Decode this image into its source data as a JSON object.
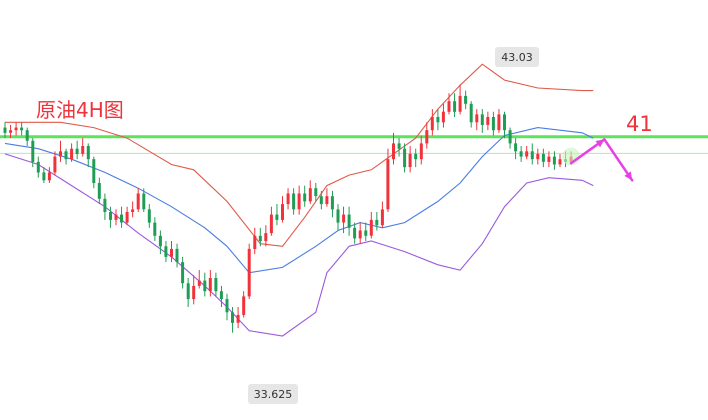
{
  "chart_data": {
    "type": "candlestick",
    "title": "原油4H图",
    "ylim": [
      31.0,
      45.4
    ],
    "grid": false,
    "legend": "none",
    "colors": {
      "up": "#f0323a",
      "down": "#1f9d55",
      "bb_upper": "#e05a4a",
      "bb_middle": "#4a7de0",
      "bb_lower": "#9b59e0",
      "resistance": "#5fe35a",
      "support": "#a9efa6",
      "arrow": "#e640e6"
    },
    "annotations": {
      "high_label": "43.03",
      "low_label": "33.625",
      "target_label": "41"
    },
    "levels": {
      "resistance": 41.05,
      "support": 40.42
    },
    "projection": {
      "points": [
        [
          102,
          40.05
        ],
        [
          108,
          40.95
        ],
        [
          113,
          39.4
        ]
      ]
    },
    "candles": [
      [
        41.4,
        41.2,
        41.6,
        41.0
      ],
      [
        41.2,
        41.3,
        41.5,
        41.0
      ],
      [
        41.3,
        41.4,
        41.6,
        41.1
      ],
      [
        41.4,
        41.3,
        41.6,
        41.1
      ],
      [
        41.3,
        40.9,
        41.4,
        40.7
      ],
      [
        40.9,
        40.1,
        41.0,
        39.9
      ],
      [
        40.1,
        39.7,
        40.3,
        39.5
      ],
      [
        39.7,
        39.4,
        39.9,
        39.3
      ],
      [
        39.4,
        39.7,
        39.9,
        39.3
      ],
      [
        39.7,
        40.3,
        40.5,
        39.6
      ],
      [
        40.3,
        40.5,
        40.9,
        40.1
      ],
      [
        40.5,
        40.2,
        40.6,
        40.0
      ],
      [
        40.2,
        40.6,
        40.8,
        40.1
      ],
      [
        40.6,
        40.4,
        40.9,
        40.2
      ],
      [
        40.4,
        40.7,
        41.0,
        40.3
      ],
      [
        40.7,
        40.2,
        40.8,
        39.9
      ],
      [
        40.2,
        39.3,
        40.3,
        39.1
      ],
      [
        39.3,
        38.7,
        39.5,
        38.5
      ],
      [
        38.7,
        38.2,
        38.9,
        37.9
      ],
      [
        38.2,
        37.9,
        38.4,
        37.6
      ],
      [
        37.9,
        38.1,
        38.3,
        37.7
      ],
      [
        38.1,
        37.8,
        38.4,
        37.6
      ],
      [
        37.8,
        38.2,
        38.4,
        37.7
      ],
      [
        38.2,
        38.3,
        38.6,
        38.0
      ],
      [
        38.3,
        38.9,
        39.1,
        38.2
      ],
      [
        38.9,
        38.3,
        39.1,
        38.2
      ],
      [
        38.3,
        37.8,
        38.5,
        37.6
      ],
      [
        37.8,
        37.3,
        38.0,
        37.1
      ],
      [
        37.3,
        36.9,
        37.5,
        36.6
      ],
      [
        36.9,
        36.5,
        37.1,
        36.3
      ],
      [
        36.5,
        36.8,
        37.1,
        36.3
      ],
      [
        36.8,
        36.3,
        37.0,
        36.1
      ],
      [
        36.3,
        35.5,
        36.5,
        35.3
      ],
      [
        35.5,
        34.9,
        35.7,
        34.6
      ],
      [
        34.9,
        35.4,
        35.8,
        34.7
      ],
      [
        35.4,
        35.6,
        36.0,
        35.3
      ],
      [
        35.6,
        35.2,
        35.9,
        35.0
      ],
      [
        35.2,
        35.7,
        36.0,
        35.0
      ],
      [
        35.7,
        35.2,
        35.9,
        35.0
      ],
      [
        35.2,
        34.9,
        35.4,
        34.6
      ],
      [
        34.9,
        34.4,
        35.1,
        34.1
      ],
      [
        34.4,
        34.0,
        34.6,
        33.625
      ],
      [
        34.0,
        34.3,
        34.6,
        33.8
      ],
      [
        34.3,
        35.0,
        35.2,
        34.2
      ],
      [
        35.0,
        36.8,
        37.0,
        34.9
      ],
      [
        36.8,
        37.3,
        37.6,
        36.6
      ],
      [
        37.3,
        37.1,
        37.6,
        36.9
      ],
      [
        37.1,
        37.4,
        37.7,
        36.9
      ],
      [
        37.4,
        38.1,
        38.4,
        37.3
      ],
      [
        38.1,
        37.9,
        38.5,
        37.7
      ],
      [
        37.9,
        38.5,
        38.8,
        37.8
      ],
      [
        38.5,
        38.9,
        39.1,
        38.3
      ],
      [
        38.9,
        38.3,
        39.1,
        38.1
      ],
      [
        38.3,
        38.9,
        39.2,
        38.1
      ],
      [
        38.9,
        38.6,
        39.2,
        38.4
      ],
      [
        38.6,
        39.1,
        39.4,
        38.5
      ],
      [
        39.1,
        38.8,
        39.3,
        38.6
      ],
      [
        38.8,
        38.5,
        39.0,
        38.3
      ],
      [
        38.5,
        38.8,
        39.1,
        38.4
      ],
      [
        38.8,
        38.3,
        39.0,
        38.0
      ],
      [
        38.3,
        37.8,
        38.5,
        37.5
      ],
      [
        37.8,
        38.1,
        38.4,
        37.4
      ],
      [
        38.1,
        37.6,
        38.4,
        37.3
      ],
      [
        37.6,
        37.2,
        37.8,
        37.0
      ],
      [
        37.2,
        37.5,
        37.8,
        37.0
      ],
      [
        37.5,
        37.3,
        37.8,
        37.1
      ],
      [
        37.3,
        37.9,
        38.2,
        37.2
      ],
      [
        37.9,
        37.7,
        38.2,
        37.5
      ],
      [
        37.7,
        38.3,
        38.6,
        37.6
      ],
      [
        38.3,
        40.2,
        40.6,
        38.2
      ],
      [
        40.2,
        40.8,
        41.2,
        40.0
      ],
      [
        40.8,
        40.6,
        41.0,
        40.3
      ],
      [
        40.6,
        39.9,
        40.8,
        39.7
      ],
      [
        39.9,
        40.4,
        40.7,
        39.7
      ],
      [
        40.4,
        40.2,
        40.6,
        39.9
      ],
      [
        40.2,
        40.8,
        41.1,
        40.0
      ],
      [
        40.8,
        41.3,
        41.6,
        40.6
      ],
      [
        41.3,
        41.8,
        42.1,
        41.1
      ],
      [
        41.8,
        41.6,
        42.1,
        41.3
      ],
      [
        41.6,
        42.0,
        42.3,
        41.4
      ],
      [
        42.0,
        42.4,
        42.7,
        41.9
      ],
      [
        42.4,
        42.0,
        42.7,
        41.8
      ],
      [
        42.0,
        42.6,
        43.03,
        41.9
      ],
      [
        42.6,
        42.3,
        42.8,
        42.1
      ],
      [
        42.3,
        41.6,
        42.4,
        41.4
      ],
      [
        41.6,
        41.9,
        42.1,
        41.3
      ],
      [
        41.9,
        41.5,
        42.1,
        41.2
      ],
      [
        41.5,
        41.8,
        42.0,
        41.3
      ],
      [
        41.8,
        41.3,
        42.0,
        41.1
      ],
      [
        41.3,
        41.9,
        42.1,
        41.2
      ],
      [
        41.9,
        41.3,
        42.0,
        41.0
      ],
      [
        41.3,
        40.8,
        41.4,
        40.6
      ],
      [
        40.8,
        40.5,
        41.0,
        40.2
      ],
      [
        40.5,
        40.3,
        40.7,
        40.1
      ],
      [
        40.3,
        40.5,
        40.7,
        40.2
      ],
      [
        40.5,
        40.2,
        40.8,
        40.0
      ],
      [
        40.2,
        40.4,
        40.6,
        40.0
      ],
      [
        40.4,
        40.1,
        40.6,
        39.9
      ],
      [
        40.1,
        40.3,
        40.5,
        39.9
      ],
      [
        40.3,
        40.0,
        40.5,
        39.8
      ],
      [
        40.0,
        40.2,
        40.4,
        39.9
      ],
      [
        40.2,
        40.1,
        40.5,
        39.9
      ],
      [
        40.1,
        40.3,
        40.5,
        40.0
      ]
    ],
    "bollinger": {
      "upper": [
        [
          0,
          41.6
        ],
        [
          10,
          41.6
        ],
        [
          16,
          41.4
        ],
        [
          22,
          41.0
        ],
        [
          26,
          40.5
        ],
        [
          30,
          40.0
        ],
        [
          34,
          39.8
        ],
        [
          40,
          38.6
        ],
        [
          46,
          37.0
        ],
        [
          50,
          36.9
        ],
        [
          54,
          38.0
        ],
        [
          58,
          39.2
        ],
        [
          62,
          39.6
        ],
        [
          66,
          39.8
        ],
        [
          70,
          40.4
        ],
        [
          74,
          41.0
        ],
        [
          78,
          42.1
        ],
        [
          82,
          43.0
        ],
        [
          86,
          43.8
        ],
        [
          90,
          43.2
        ],
        [
          96,
          42.9
        ],
        [
          104,
          42.8
        ],
        [
          106,
          42.8
        ]
      ],
      "middle": [
        [
          0,
          40.8
        ],
        [
          6,
          40.6
        ],
        [
          12,
          40.2
        ],
        [
          18,
          39.7
        ],
        [
          24,
          39.1
        ],
        [
          30,
          38.4
        ],
        [
          36,
          37.6
        ],
        [
          40,
          36.9
        ],
        [
          44,
          35.9
        ],
        [
          50,
          36.1
        ],
        [
          56,
          36.9
        ],
        [
          60,
          37.5
        ],
        [
          64,
          37.8
        ],
        [
          68,
          37.6
        ],
        [
          72,
          37.8
        ],
        [
          78,
          38.6
        ],
        [
          82,
          39.3
        ],
        [
          86,
          40.3
        ],
        [
          90,
          41.1
        ],
        [
          96,
          41.4
        ],
        [
          104,
          41.2
        ],
        [
          106,
          41.0
        ]
      ],
      "lower": [
        [
          0,
          40.4
        ],
        [
          6,
          40.0
        ],
        [
          12,
          39.2
        ],
        [
          18,
          38.4
        ],
        [
          24,
          37.4
        ],
        [
          30,
          36.5
        ],
        [
          36,
          35.4
        ],
        [
          40,
          34.6
        ],
        [
          44,
          33.7
        ],
        [
          50,
          33.5
        ],
        [
          56,
          34.4
        ],
        [
          58,
          35.9
        ],
        [
          62,
          36.9
        ],
        [
          66,
          37.1
        ],
        [
          72,
          36.7
        ],
        [
          78,
          36.2
        ],
        [
          82,
          36.0
        ],
        [
          86,
          37.0
        ],
        [
          90,
          38.4
        ],
        [
          94,
          39.3
        ],
        [
          98,
          39.5
        ],
        [
          104,
          39.4
        ],
        [
          106,
          39.2
        ]
      ]
    }
  }
}
